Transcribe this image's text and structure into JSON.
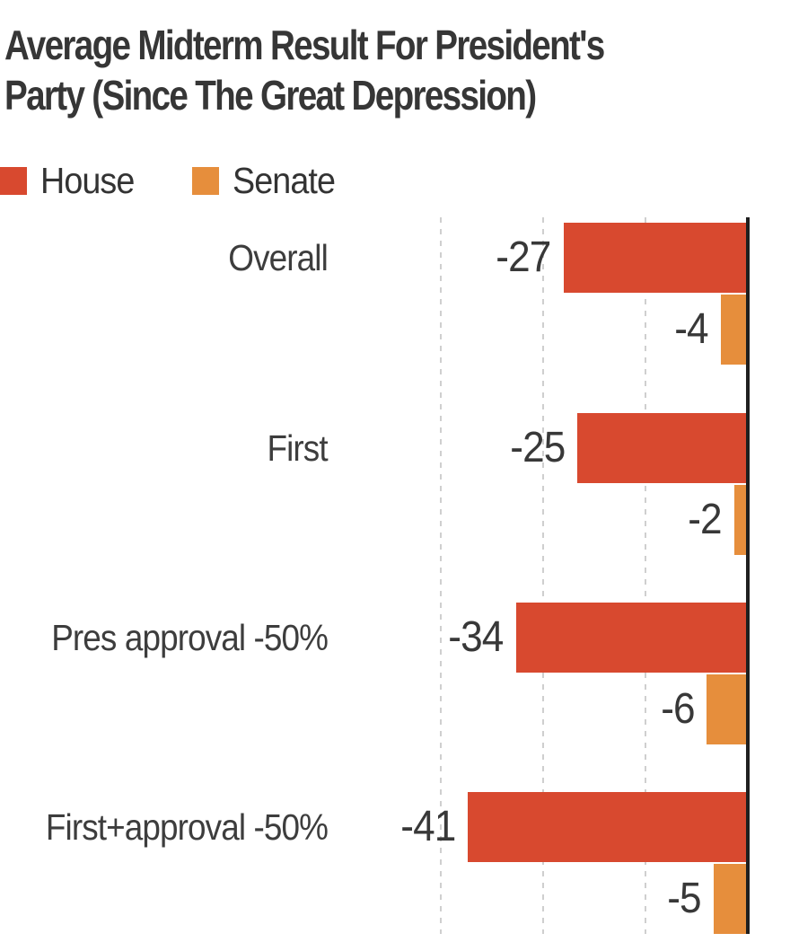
{
  "title": {
    "line1": "Average Midterm Result For President's",
    "line2": "Party (Since The Great Depression)"
  },
  "legend": {
    "items": [
      {
        "label": "House",
        "color": "#D8492F"
      },
      {
        "label": "Senate",
        "color": "#E68E3C"
      }
    ]
  },
  "chart_data": {
    "type": "bar",
    "orientation": "horizontal",
    "title": "Average Midterm Result For President's Party (Since The Great Depression)",
    "categories": [
      "Overall",
      "First",
      "Pres approval -50%",
      "First+approval -50%"
    ],
    "series": [
      {
        "name": "House",
        "color": "#D8492F",
        "values": [
          -27,
          -25,
          -34,
          -41
        ]
      },
      {
        "name": "Senate",
        "color": "#E68E3C",
        "values": [
          -4,
          -2,
          -6,
          -5
        ]
      }
    ],
    "value_labels": [
      "-27",
      "-4",
      "-25",
      "-2",
      "-34",
      "-6",
      "-41",
      "-5"
    ],
    "xlim": [
      -52,
      0
    ],
    "gridlines": [
      -15,
      -30,
      -45
    ],
    "baseline": 0,
    "grid": "dashed-vertical-lines",
    "legend_position": "top-left",
    "axis_side": "right-zero-line"
  },
  "colors": {
    "house": "#D8492F",
    "senate": "#E68E3C",
    "axis": "#1f1f1f",
    "grid": "#cfcfcf",
    "text": "#3d3d3d",
    "title_text": "#363636",
    "background": "#ffffff"
  }
}
